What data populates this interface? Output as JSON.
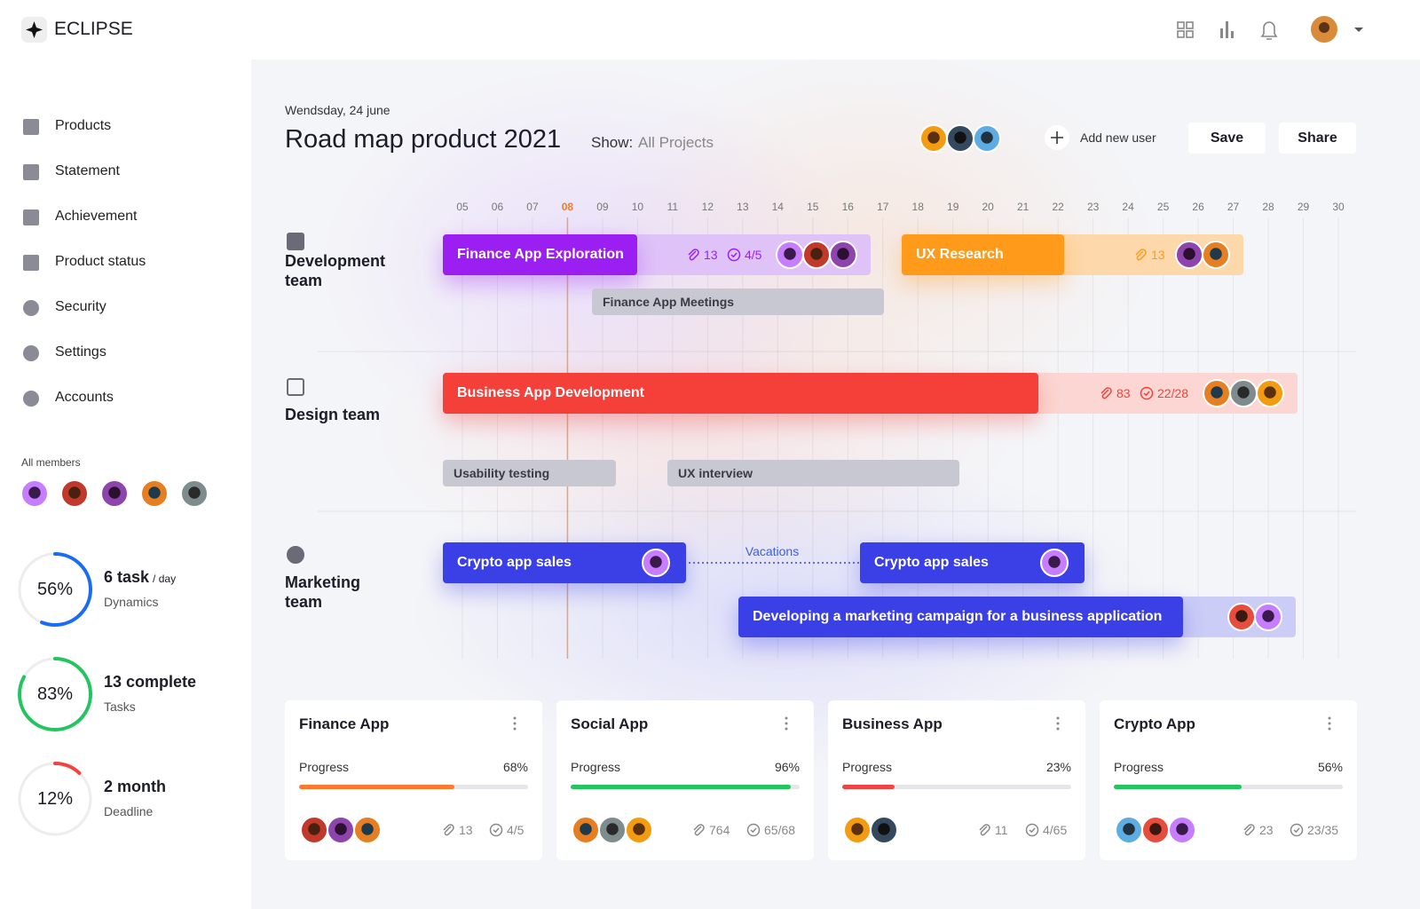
{
  "header": {
    "brand": "ECLIPSE"
  },
  "nav": [
    "Products",
    "Statement",
    "Achievement",
    "Product status",
    "Security",
    "Settings",
    "Accounts"
  ],
  "members_label": "All members",
  "stats": [
    {
      "percent": {
        "value": 56,
        "label": "56%"
      },
      "title": "6 task",
      "unit": "/ day",
      "caption": "Dynamics",
      "color": "#1a6cf5"
    },
    {
      "percent": {
        "value": 83,
        "label": "83%"
      },
      "title": "13 complete",
      "caption": "Tasks",
      "color": "#22c55e"
    },
    {
      "percent": {
        "value": 12,
        "label": "12%"
      },
      "title": "2 month",
      "caption": "Deadline",
      "color": "#f04444"
    }
  ],
  "page": {
    "date": "Wendsday, 24 june",
    "title": "Road map product 2021",
    "show_label": "Show:",
    "show_value": "All Projects",
    "add_user": "Add new user",
    "save": "Save",
    "share": "Share"
  },
  "timeline": {
    "days": [
      "05",
      "06",
      "07",
      "08",
      "09",
      "10",
      "11",
      "12",
      "13",
      "14",
      "15",
      "16",
      "17",
      "18",
      "19",
      "20",
      "21",
      "22",
      "23",
      "24",
      "25",
      "26",
      "27",
      "28",
      "29",
      "30"
    ],
    "today": "08",
    "vacations": "Vacations"
  },
  "teams": [
    {
      "name": "Development team",
      "tasks": [
        {
          "label": "Finance App Exploration",
          "attachments": "13",
          "checks": "4/5",
          "color": "#9b1ff0",
          "tail": "#dfc3f8"
        },
        {
          "label": "Finance App Meetings"
        },
        {
          "label": "UX Research",
          "attachments": "13",
          "color": "#ff9a1a",
          "tail": "#fdd8ab"
        }
      ]
    },
    {
      "name": "Design team",
      "tasks": [
        {
          "label": "Business App Development",
          "attachments": "83",
          "checks": "22/28",
          "color": "#f5403a",
          "tail": "#fbd6d2"
        },
        {
          "label": "Usability testing"
        },
        {
          "label": "UX interview"
        }
      ]
    },
    {
      "name": "Marketing team",
      "tasks": [
        {
          "label": "Crypto app sales",
          "color": "#3b3fe6"
        },
        {
          "label": "Crypto app sales",
          "color": "#3b3fe6"
        },
        {
          "label": "Developing a marketing campaign for a business application",
          "color": "#3b3fe6",
          "tail": "#cbcdf6"
        }
      ]
    }
  ],
  "cards": [
    {
      "title": "Finance App",
      "progress_label": "Progress",
      "progress": {
        "value": 68,
        "label": "68%"
      },
      "attachments": "13",
      "checks": "4/5",
      "color": "#ff7a2f"
    },
    {
      "title": "Social App",
      "progress_label": "Progress",
      "progress": {
        "value": 96,
        "label": "96%"
      },
      "attachments": "764",
      "checks": "65/68",
      "color": "#22c55e"
    },
    {
      "title": "Business App",
      "progress_label": "Progress",
      "progress": {
        "value": 23,
        "label": "23%"
      },
      "attachments": "11",
      "checks": "4/65",
      "color": "#f04444"
    },
    {
      "title": "Crypto App",
      "progress_label": "Progress",
      "progress": {
        "value": 56,
        "label": "56%"
      },
      "attachments": "23",
      "checks": "23/35",
      "color": "#22c55e"
    }
  ]
}
